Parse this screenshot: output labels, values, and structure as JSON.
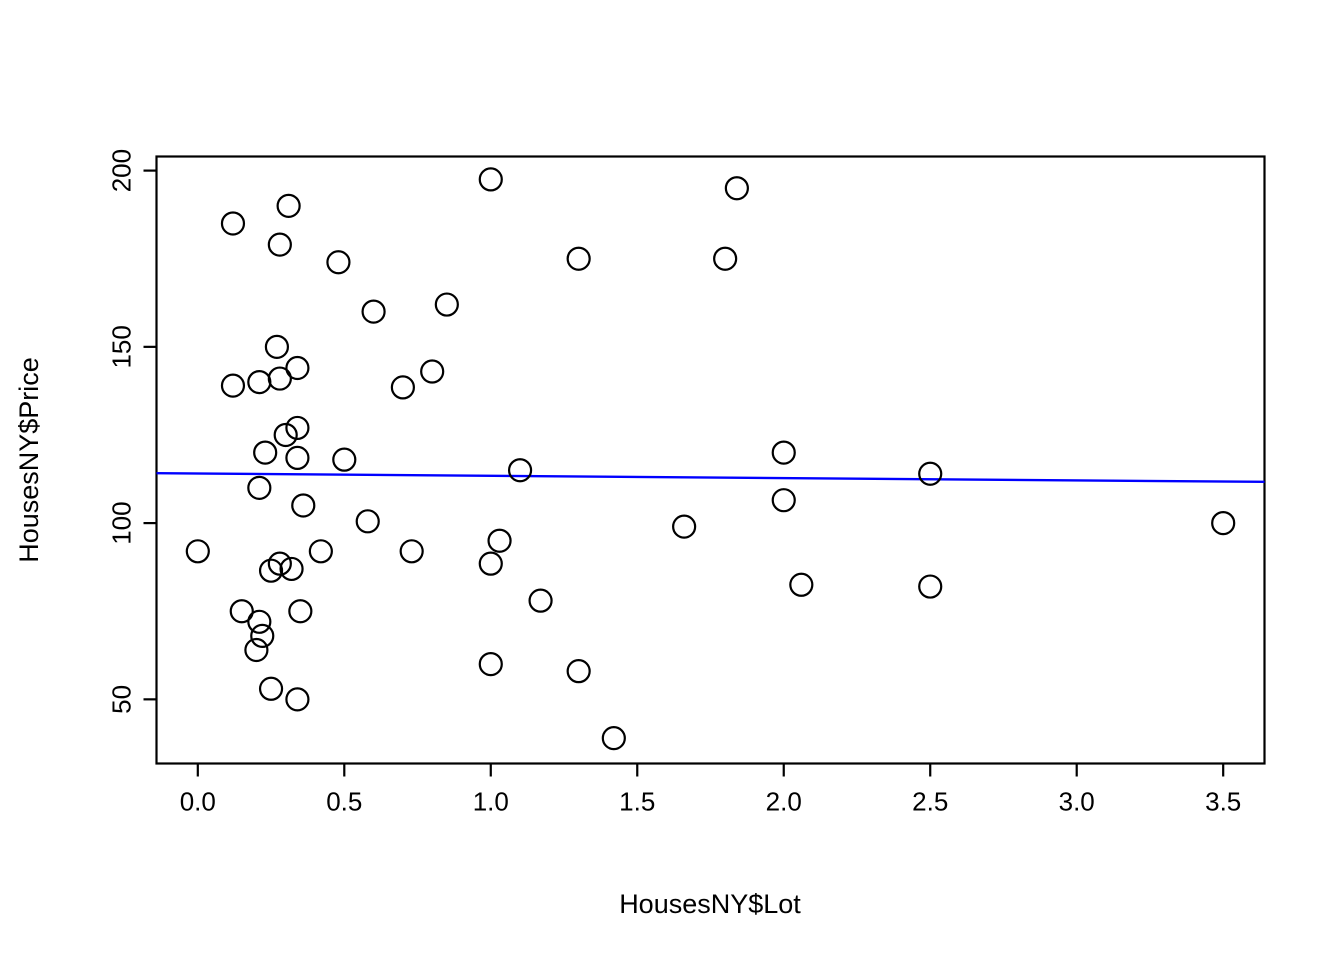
{
  "figure": {
    "background": "#ffffff",
    "foreground": "#000000"
  },
  "chart_data": {
    "type": "scatter",
    "title": "",
    "xlabel": "HousesNY$Lot",
    "ylabel": "HousesNY$Price",
    "x_ticks": [
      0.0,
      0.5,
      1.0,
      1.5,
      2.0,
      2.5,
      3.0,
      3.5
    ],
    "x_tick_labels": [
      "0.0",
      "0.5",
      "1.0",
      "1.5",
      "2.0",
      "2.5",
      "3.0",
      "3.5"
    ],
    "y_ticks": [
      50,
      100,
      150,
      200
    ],
    "y_tick_labels": [
      "50",
      "100",
      "150",
      "200"
    ],
    "xlim": [
      -0.141,
      3.641
    ],
    "ylim": [
      31.8,
      204.0
    ],
    "grid": false,
    "legend": null,
    "marker": {
      "shape": "open-circle",
      "color": "#000000",
      "radius_px": 11,
      "stroke_px": 2.2
    },
    "points": [
      [
        1.0,
        197.5
      ],
      [
        1.84,
        195
      ],
      [
        0.31,
        190
      ],
      [
        0.12,
        185
      ],
      [
        0.28,
        179
      ],
      [
        1.3,
        175
      ],
      [
        1.8,
        175
      ],
      [
        0.48,
        174
      ],
      [
        0.85,
        162
      ],
      [
        0.6,
        160
      ],
      [
        0.27,
        150
      ],
      [
        0.34,
        144
      ],
      [
        0.28,
        141
      ],
      [
        0.21,
        140
      ],
      [
        0.12,
        139
      ],
      [
        0.7,
        138.5
      ],
      [
        0.8,
        143
      ],
      [
        0.34,
        127
      ],
      [
        0.3,
        125
      ],
      [
        0.23,
        120
      ],
      [
        0.34,
        118.5
      ],
      [
        0.5,
        118
      ],
      [
        1.1,
        115
      ],
      [
        0.21,
        110
      ],
      [
        0.36,
        105
      ],
      [
        2.0,
        120
      ],
      [
        2.5,
        114
      ],
      [
        2.0,
        106.5
      ],
      [
        0.58,
        100.5
      ],
      [
        1.66,
        99
      ],
      [
        3.5,
        100
      ],
      [
        0.0,
        92
      ],
      [
        0.42,
        92
      ],
      [
        0.73,
        92
      ],
      [
        0.28,
        88.5
      ],
      [
        0.25,
        86.5
      ],
      [
        0.32,
        87
      ],
      [
        1.03,
        95
      ],
      [
        1.0,
        88.5
      ],
      [
        1.17,
        78
      ],
      [
        2.06,
        82.5
      ],
      [
        2.5,
        82
      ],
      [
        0.15,
        75
      ],
      [
        0.35,
        75
      ],
      [
        0.21,
        72
      ],
      [
        0.22,
        68
      ],
      [
        0.2,
        64
      ],
      [
        1.0,
        60
      ],
      [
        1.3,
        58
      ],
      [
        0.25,
        53
      ],
      [
        0.34,
        50
      ],
      [
        1.42,
        39
      ]
    ],
    "regression_line": {
      "color": "#0000ff",
      "x1": -0.141,
      "y1": 114.15,
      "x2": 3.641,
      "y2": 111.7
    }
  }
}
